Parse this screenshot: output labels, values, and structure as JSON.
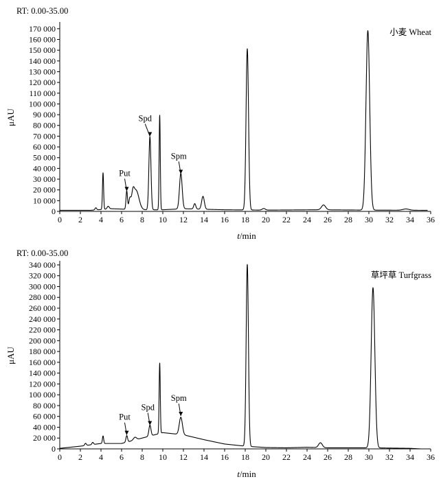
{
  "chart_data": [
    {
      "type": "line",
      "title": "RT: 0.00-35.00",
      "legend": "小麦 Wheat",
      "xlabel_italic": "t",
      "xlabel_rest": "/min",
      "ylabel": "μAU",
      "xlim": [
        0,
        36
      ],
      "ylim": [
        0,
        175000
      ],
      "xticks": [
        0,
        2,
        4,
        6,
        8,
        10,
        12,
        14,
        16,
        18,
        20,
        22,
        24,
        26,
        28,
        30,
        32,
        34,
        36
      ],
      "yticks": [
        0,
        10000,
        20000,
        30000,
        40000,
        50000,
        60000,
        70000,
        80000,
        90000,
        100000,
        110000,
        120000,
        130000,
        140000,
        150000,
        160000,
        170000
      ],
      "ytick_labels": [
        "0",
        "10 000",
        "20 000",
        "30 000",
        "40 000",
        "50 000",
        "60 000",
        "70 000",
        "80 000",
        "90 000",
        "100 000",
        "110 000",
        "120 000",
        "130 000",
        "140 000",
        "150 000",
        "160 000",
        "170 000"
      ],
      "baseline": [
        [
          0,
          1000
        ],
        [
          3,
          1000
        ],
        [
          5,
          2500
        ],
        [
          8,
          1500
        ],
        [
          10,
          1500
        ],
        [
          12,
          2500
        ],
        [
          16,
          1500
        ],
        [
          20,
          1200
        ],
        [
          25,
          1500
        ],
        [
          30,
          1200
        ],
        [
          36,
          1000
        ]
      ],
      "peaks": [
        {
          "rt": 3.5,
          "h": 2000,
          "w": 0.08
        },
        {
          "rt": 4.2,
          "h": 34000,
          "w": 0.055
        },
        {
          "rt": 4.7,
          "h": 2500,
          "w": 0.1
        },
        {
          "rt": 6.5,
          "h": 17000,
          "w": 0.07
        },
        {
          "rt": 6.8,
          "h": 9000,
          "w": 0.1
        },
        {
          "rt": 7.1,
          "h": 10000,
          "w": 0.12
        },
        {
          "rt": 7.4,
          "h": 18000,
          "w": 0.28
        },
        {
          "rt": 8.75,
          "h": 68000,
          "w": 0.1
        },
        {
          "rt": 9.7,
          "h": 88000,
          "w": 0.055
        },
        {
          "rt": 11.75,
          "h": 33000,
          "w": 0.13
        },
        {
          "rt": 13.1,
          "h": 5000,
          "w": 0.1
        },
        {
          "rt": 13.9,
          "h": 12000,
          "w": 0.13
        },
        {
          "rt": 18.2,
          "h": 150000,
          "w": 0.12
        },
        {
          "rt": 19.8,
          "h": 1500,
          "w": 0.15
        },
        {
          "rt": 25.6,
          "h": 4500,
          "w": 0.2
        },
        {
          "rt": 29.9,
          "h": 167000,
          "w": 0.18
        },
        {
          "rt": 33.6,
          "h": 1200,
          "w": 0.3
        }
      ],
      "annotations": [
        {
          "label": "Put",
          "rt": 6.5,
          "y": 17000
        },
        {
          "label": "Spd",
          "rt": 8.75,
          "y": 68000
        },
        {
          "label": "Spm",
          "rt": 11.75,
          "y": 33000
        }
      ]
    },
    {
      "type": "line",
      "title": "RT: 0.00-35.00",
      "legend": "草坪草 Turfgrass",
      "xlabel_italic": "t",
      "xlabel_rest": "/min",
      "ylabel": "μAU",
      "xlim": [
        0,
        36
      ],
      "ylim": [
        0,
        345000
      ],
      "xticks": [
        0,
        2,
        4,
        6,
        8,
        10,
        12,
        14,
        16,
        18,
        20,
        22,
        24,
        26,
        28,
        30,
        32,
        34,
        36
      ],
      "yticks": [
        0,
        20000,
        40000,
        60000,
        80000,
        100000,
        120000,
        140000,
        160000,
        180000,
        200000,
        220000,
        240000,
        260000,
        280000,
        300000,
        320000,
        340000
      ],
      "ytick_labels": [
        "0",
        "20 000",
        "40 000",
        "60 000",
        "80 000",
        "100 000",
        "120 000",
        "140 000",
        "160 000",
        "180 000",
        "200 000",
        "220 000",
        "240 000",
        "260 000",
        "280 000",
        "300 000",
        "320 000",
        "340 000"
      ],
      "baseline": [
        [
          0,
          1000
        ],
        [
          2,
          5000
        ],
        [
          4,
          10000
        ],
        [
          6,
          10000
        ],
        [
          8,
          20000
        ],
        [
          10,
          30000
        ],
        [
          12,
          26000
        ],
        [
          14,
          17000
        ],
        [
          16,
          9000
        ],
        [
          18,
          5000
        ],
        [
          20,
          2500
        ],
        [
          22,
          2000
        ],
        [
          24,
          3000
        ],
        [
          26,
          2000
        ],
        [
          30,
          2000
        ],
        [
          34,
          1000
        ],
        [
          35,
          0
        ]
      ],
      "peaks": [
        {
          "rt": 2.5,
          "h": 4000,
          "w": 0.08
        },
        {
          "rt": 3.2,
          "h": 4000,
          "w": 0.08
        },
        {
          "rt": 4.2,
          "h": 14000,
          "w": 0.06
        },
        {
          "rt": 6.5,
          "h": 12000,
          "w": 0.08
        },
        {
          "rt": 7.3,
          "h": 5000,
          "w": 0.15
        },
        {
          "rt": 8.75,
          "h": 20000,
          "w": 0.1
        },
        {
          "rt": 9.7,
          "h": 130000,
          "w": 0.055
        },
        {
          "rt": 11.75,
          "h": 32000,
          "w": 0.15
        },
        {
          "rt": 18.2,
          "h": 336000,
          "w": 0.11
        },
        {
          "rt": 25.3,
          "h": 9000,
          "w": 0.18
        },
        {
          "rt": 30.4,
          "h": 296000,
          "w": 0.18
        }
      ],
      "annotations": [
        {
          "label": "Put",
          "rt": 6.5,
          "y": 22000
        },
        {
          "label": "Spd",
          "rt": 8.75,
          "y": 40000
        },
        {
          "label": "Spm",
          "rt": 11.75,
          "y": 57000
        }
      ]
    }
  ]
}
